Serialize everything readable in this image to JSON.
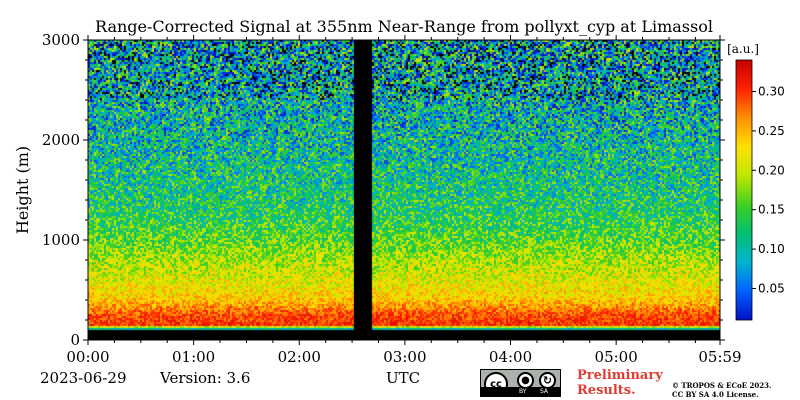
{
  "chart_data": {
    "type": "heatmap",
    "title": "Range-Corrected Signal at 355nm Near-Range from pollyxt_cyp at Limassol",
    "xlabel": "UTC",
    "ylabel": "Height (m)",
    "x_ticks": [
      "00:00",
      "01:00",
      "02:00",
      "03:00",
      "04:00",
      "05:00",
      "05:59"
    ],
    "y_ticks": [
      "0",
      "1000",
      "2000",
      "3000"
    ],
    "y_tick_values": [
      0,
      1000,
      2000,
      3000
    ],
    "xlim_hours": [
      0,
      5.983
    ],
    "ylim": [
      0,
      3000
    ],
    "colorbar": {
      "label": "[a.u.]",
      "min": 0.01,
      "max": 0.34,
      "ticks": [
        "0.05",
        "0.10",
        "0.15",
        "0.20",
        "0.25",
        "0.30"
      ],
      "tick_values": [
        0.05,
        0.1,
        0.15,
        0.2,
        0.25,
        0.3
      ],
      "colormap": [
        "#0010c8",
        "#0060ff",
        "#00b4d0",
        "#00c070",
        "#40d020",
        "#c0e800",
        "#ffe000",
        "#ff9000",
        "#ff2000",
        "#c80000"
      ]
    },
    "data_gap_hours": [
      2.52,
      2.68
    ],
    "profile": [
      {
        "height": 0,
        "value": null
      },
      {
        "height": 100,
        "value": 0.05
      },
      {
        "height": 150,
        "value": 0.3
      },
      {
        "height": 250,
        "value": 0.29
      },
      {
        "height": 400,
        "value": 0.24
      },
      {
        "height": 600,
        "value": 0.21
      },
      {
        "height": 800,
        "value": 0.19
      },
      {
        "height": 1000,
        "value": 0.16
      },
      {
        "height": 1300,
        "value": 0.13
      },
      {
        "height": 1700,
        "value": 0.115
      },
      {
        "height": 2200,
        "value": 0.1
      },
      {
        "height": 3000,
        "value": 0.09
      }
    ]
  },
  "footer": {
    "date": "2023-06-29",
    "version": "Version: 3.6",
    "utc_label": "UTC",
    "license_badge": {
      "cc": "cc",
      "by": "BY",
      "sa": "SA"
    },
    "preliminary_line1": "Preliminary",
    "preliminary_line2": "Results.",
    "copyright_line1": "© TROPOS & ECoE 2023.",
    "copyright_line2": "CC BY SA 4.0 License."
  }
}
